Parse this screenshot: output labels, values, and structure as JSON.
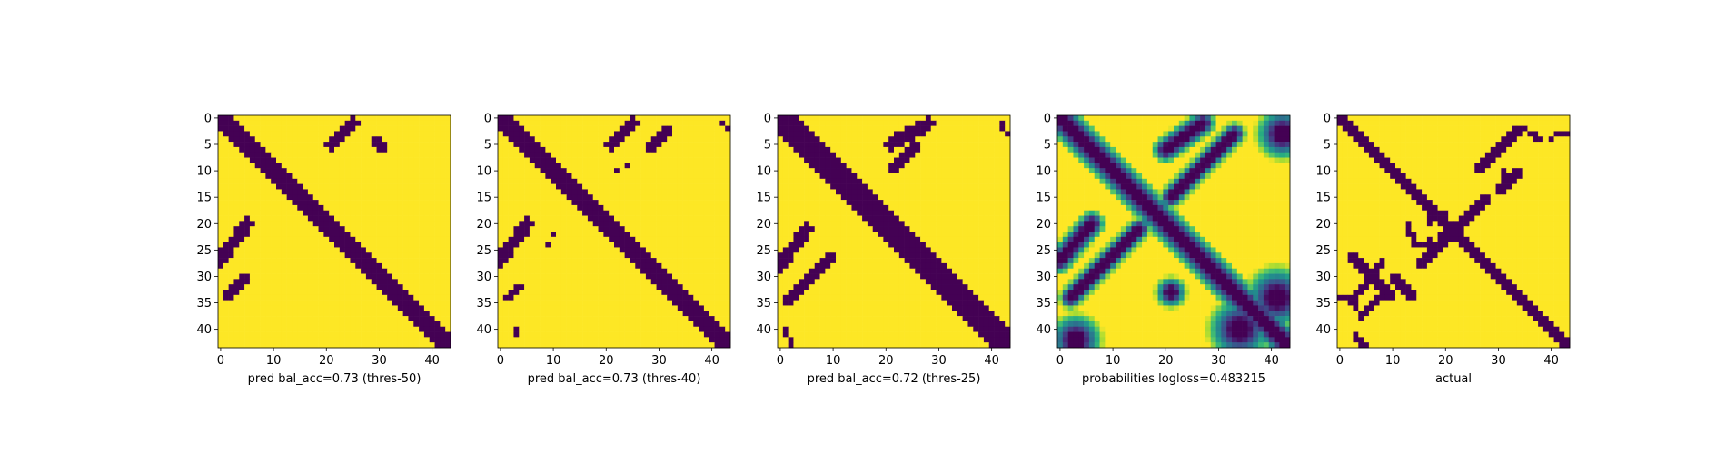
{
  "figure": {
    "colors": {
      "low": "#440154",
      "high": "#fde725",
      "axis": "#000000",
      "background": "#ffffff"
    }
  },
  "chart_data": [
    {
      "type": "heatmap",
      "title": "",
      "xlabel": "pred bal_acc=0.73 (thres-50)",
      "ylabel": "",
      "grid": false,
      "size": 44,
      "xticks": [
        0,
        10,
        20,
        30,
        40
      ],
      "yticks": [
        0,
        5,
        10,
        15,
        20,
        25,
        30,
        35,
        40
      ],
      "xlim": [
        -0.5,
        43.5
      ],
      "ylim": [
        43.5,
        -0.5
      ],
      "colormap": "viridis",
      "value_range": [
        0,
        1
      ],
      "description_of_values": "binary matrix, 0 = dark purple, 1 = yellow",
      "zero_regions": [
        {
          "kind": "band",
          "from": [
            0,
            0
          ],
          "to": [
            43,
            43
          ],
          "width": 3
        },
        {
          "kind": "band",
          "from": [
            1,
            25
          ],
          "to": [
            5,
            21
          ],
          "width": 2
        },
        {
          "kind": "band",
          "from": [
            4,
            29
          ],
          "to": [
            6,
            31
          ],
          "width": 1
        },
        {
          "kind": "band",
          "from": [
            20,
            5
          ],
          "to": [
            27,
            0
          ],
          "width": 2
        },
        {
          "kind": "band",
          "from": [
            30,
            5
          ],
          "to": [
            34,
            1
          ],
          "width": 1
        }
      ]
    },
    {
      "type": "heatmap",
      "title": "",
      "xlabel": "pred bal_acc=0.73 (thres-40)",
      "ylabel": "",
      "grid": false,
      "size": 44,
      "xticks": [
        0,
        10,
        20,
        30,
        40
      ],
      "yticks": [
        0,
        5,
        10,
        15,
        20,
        25,
        30,
        35,
        40
      ],
      "xlim": [
        -0.5,
        43.5
      ],
      "ylim": [
        43.5,
        -0.5
      ],
      "colormap": "viridis",
      "value_range": [
        0,
        1
      ],
      "description_of_values": "binary matrix, 0 = dark purple, 1 = yellow",
      "zero_regions": [
        {
          "kind": "band",
          "from": [
            0,
            0
          ],
          "to": [
            43,
            43
          ],
          "width": 3
        },
        {
          "kind": "band",
          "from": [
            1,
            25
          ],
          "to": [
            5,
            21
          ],
          "width": 2
        },
        {
          "kind": "band",
          "from": [
            2,
            32
          ],
          "to": [
            6,
            28
          ],
          "width": 1
        },
        {
          "kind": "band",
          "from": [
            20,
            5
          ],
          "to": [
            27,
            0
          ],
          "width": 2
        },
        {
          "kind": "band",
          "from": [
            32,
            4
          ],
          "to": [
            34,
            1
          ],
          "width": 1
        },
        {
          "kind": "cells",
          "cells": [
            [
              9,
              24
            ],
            [
              10,
              22
            ],
            [
              22,
              10
            ],
            [
              24,
              9
            ],
            [
              1,
              42
            ],
            [
              2,
              43
            ],
            [
              40,
              3
            ],
            [
              41,
              3
            ]
          ]
        }
      ]
    },
    {
      "type": "heatmap",
      "title": "",
      "xlabel": "pred bal_acc=0.72 (thres-25)",
      "ylabel": "",
      "grid": false,
      "size": 44,
      "xticks": [
        0,
        10,
        20,
        30,
        40
      ],
      "yticks": [
        0,
        5,
        10,
        15,
        20,
        25,
        30,
        35,
        40
      ],
      "xlim": [
        -0.5,
        43.5
      ],
      "ylim": [
        43.5,
        -0.5
      ],
      "colormap": "viridis",
      "value_range": [
        0,
        1
      ],
      "description_of_values": "binary matrix, 0 = dark purple, 1 = yellow",
      "zero_regions": [
        {
          "kind": "band",
          "from": [
            0,
            0
          ],
          "to": [
            43,
            43
          ],
          "width": 4
        },
        {
          "kind": "band",
          "from": [
            1,
            28
          ],
          "to": [
            5,
            21
          ],
          "width": 2
        },
        {
          "kind": "band",
          "from": [
            5,
            26
          ],
          "to": [
            10,
            21
          ],
          "width": 1
        },
        {
          "kind": "band",
          "from": [
            21,
            5
          ],
          "to": [
            28,
            0
          ],
          "width": 2
        },
        {
          "kind": "band",
          "from": [
            26,
            10
          ],
          "to": [
            35,
            1
          ],
          "width": 1
        },
        {
          "kind": "cells",
          "cells": [
            [
              1,
              42
            ],
            [
              2,
              42
            ],
            [
              3,
              43
            ],
            [
              40,
              1
            ],
            [
              41,
              1
            ],
            [
              42,
              2
            ],
            [
              43,
              2
            ]
          ]
        }
      ]
    },
    {
      "type": "heatmap",
      "title": "",
      "xlabel": "probabilities logloss=0.483215",
      "ylabel": "",
      "grid": false,
      "size": 44,
      "xticks": [
        0,
        10,
        20,
        30,
        40
      ],
      "yticks": [
        0,
        5,
        10,
        15,
        20,
        25,
        30,
        35,
        40
      ],
      "xlim": [
        -0.5,
        43.5
      ],
      "ylim": [
        43.5,
        -0.5
      ],
      "colormap": "viridis",
      "value_range": [
        0,
        1
      ],
      "description_of_values": "predicted probabilities, low = dark purple, high = yellow",
      "low_regions": [
        {
          "kind": "band",
          "from": [
            0,
            0
          ],
          "to": [
            43,
            43
          ],
          "width": 3.2
        },
        {
          "kind": "band",
          "from": [
            1,
            27
          ],
          "to": [
            6,
            20
          ],
          "width": 2.5
        },
        {
          "kind": "band",
          "from": [
            3,
            33
          ],
          "to": [
            15,
            21
          ],
          "width": 2.2
        },
        {
          "kind": "band",
          "from": [
            20,
            6
          ],
          "to": [
            27,
            0
          ],
          "width": 2.5
        },
        {
          "kind": "band",
          "from": [
            21,
            15
          ],
          "to": [
            34,
            2
          ],
          "width": 2.2
        },
        {
          "kind": "blob",
          "center": [
            3,
            42
          ],
          "radius": 2.5
        },
        {
          "kind": "blob",
          "center": [
            42,
            3
          ],
          "radius": 2.5
        },
        {
          "kind": "blob",
          "center": [
            40,
            34
          ],
          "radius": 3
        },
        {
          "kind": "blob",
          "center": [
            34,
            41
          ],
          "radius": 3
        },
        {
          "kind": "blob",
          "center": [
            33,
            21
          ],
          "radius": 1.5
        }
      ]
    },
    {
      "type": "heatmap",
      "title": "",
      "xlabel": "actual",
      "ylabel": "",
      "grid": false,
      "size": 44,
      "xticks": [
        0,
        10,
        20,
        30,
        40
      ],
      "yticks": [
        0,
        5,
        10,
        15,
        20,
        25,
        30,
        35,
        40
      ],
      "xlim": [
        -0.5,
        43.5
      ],
      "ylim": [
        43.5,
        -0.5
      ],
      "colormap": "viridis",
      "value_range": [
        0,
        1
      ],
      "description_of_values": "binary matrix, 0 = dark purple, 1 = yellow",
      "zero_regions": [
        {
          "kind": "band",
          "from": [
            0,
            0
          ],
          "to": [
            43,
            43
          ],
          "width": 2
        },
        {
          "kind": "band",
          "from": [
            2,
            34
          ],
          "to": [
            10,
            26
          ],
          "width": 1
        },
        {
          "kind": "band",
          "from": [
            10,
            34
          ],
          "to": [
            14,
            30
          ],
          "width": 1
        },
        {
          "kind": "band",
          "from": [
            26,
            2
          ],
          "to": [
            34,
            10
          ],
          "width": 1
        },
        {
          "kind": "band",
          "from": [
            30,
            10
          ],
          "to": [
            34,
            14
          ],
          "width": 1
        },
        {
          "kind": "band",
          "from": [
            15,
            28
          ],
          "to": [
            28,
            15
          ],
          "width": 1
        },
        {
          "kind": "band",
          "from": [
            27,
            8
          ],
          "to": [
            35,
            2
          ],
          "width": 1
        },
        {
          "kind": "band",
          "from": [
            32,
            9
          ],
          "to": [
            38,
            4
          ],
          "width": 1
        },
        {
          "kind": "cells",
          "cells": [
            [
              3,
              36
            ],
            [
              3,
              37
            ],
            [
              4,
              37
            ],
            [
              4,
              38
            ],
            [
              3,
              41
            ],
            [
              3,
              42
            ],
            [
              4,
              40
            ],
            [
              3,
              43
            ],
            [
              41,
              3
            ],
            [
              42,
              3
            ],
            [
              42,
              4
            ],
            [
              43,
              4
            ],
            [
              43,
              5
            ],
            [
              22,
              19
            ],
            [
              22,
              20
            ],
            [
              22,
              21
            ],
            [
              22,
              22
            ],
            [
              22,
              23
            ],
            [
              20,
              20
            ],
            [
              21,
              22
            ],
            [
              23,
              21
            ],
            [
              20,
              13
            ],
            [
              21,
              13
            ],
            [
              22,
              13
            ],
            [
              22,
              14
            ],
            [
              23,
              14
            ],
            [
              24,
              14
            ],
            [
              24,
              15
            ],
            [
              24,
              16
            ],
            [
              24,
              17
            ],
            [
              23,
              17
            ],
            [
              20,
              17
            ],
            [
              19,
              17
            ],
            [
              18,
              17
            ],
            [
              18,
              18
            ],
            [
              18,
              19
            ],
            [
              18,
              20
            ],
            [
              23,
              24
            ],
            [
              24,
              24
            ],
            [
              25,
              24
            ],
            [
              25,
              25
            ],
            [
              26,
              25
            ],
            [
              34,
              2
            ],
            [
              34,
              1
            ],
            [
              34,
              0
            ],
            [
              34,
              3
            ],
            [
              35,
              3
            ],
            [
              36,
              3
            ],
            [
              10,
              31
            ],
            [
              11,
              31
            ],
            [
              2,
              35
            ]
          ]
        }
      ]
    }
  ]
}
